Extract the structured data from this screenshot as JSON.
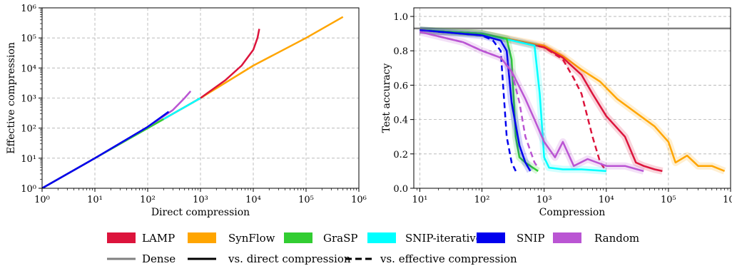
{
  "colors": {
    "LAMP": "#dc143c",
    "SynFlow": "#ffa500",
    "GraSP": "#32cd32",
    "SNIP-iterative": "#00ffff",
    "SNIP": "#0000ee",
    "Random": "#ba55d3",
    "Dense": "#808080"
  },
  "legend": {
    "items": [
      "LAMP",
      "SynFlow",
      "GraSP",
      "SNIP-iterative",
      "SNIP",
      "Random"
    ],
    "dense_label": "Dense",
    "direct_label": "vs. direct compression",
    "effective_label": "vs. effective compression"
  },
  "chart_data": [
    {
      "type": "line",
      "xlabel": "Direct compression",
      "ylabel": "Effective compression",
      "x_scale": "log",
      "y_scale": "log",
      "xlim": [
        1,
        1000000
      ],
      "ylim": [
        1,
        1000000
      ],
      "grid": true,
      "series": [
        {
          "name": "SynFlow",
          "x": [
            1,
            10,
            100,
            1000,
            10000,
            100000,
            500000
          ],
          "y": [
            1,
            10,
            100,
            1000,
            12000,
            100000,
            500000
          ]
        },
        {
          "name": "LAMP",
          "x": [
            1,
            10,
            100,
            1000,
            3000,
            6000,
            10000,
            12000,
            13000
          ],
          "y": [
            1,
            10,
            100,
            1000,
            4000,
            12000,
            40000,
            100000,
            200000
          ]
        },
        {
          "name": "SNIP-iterative",
          "x": [
            1,
            10,
            100,
            1000
          ],
          "y": [
            1,
            10,
            100,
            1000
          ]
        },
        {
          "name": "GraSP",
          "x": [
            1,
            10,
            100,
            200
          ],
          "y": [
            1,
            10,
            100,
            200
          ]
        },
        {
          "name": "Random",
          "x": [
            1,
            10,
            100,
            300,
            500,
            650
          ],
          "y": [
            1,
            10,
            110,
            400,
            1000,
            1700
          ]
        },
        {
          "name": "SNIP",
          "x": [
            1,
            10,
            100,
            250
          ],
          "y": [
            1,
            10,
            110,
            350
          ]
        }
      ]
    },
    {
      "type": "line",
      "xlabel": "Compression",
      "ylabel": "Test accuracy",
      "x_scale": "log",
      "xlim": [
        8,
        1000000
      ],
      "ylim": [
        0,
        1.05
      ],
      "yticks": [
        0.0,
        0.2,
        0.4,
        0.6,
        0.8,
        1.0
      ],
      "grid": true,
      "dense_accuracy": 0.93,
      "series": [
        {
          "name": "SynFlow",
          "style": "solid",
          "x": [
            10,
            100,
            1000,
            2000,
            4000,
            8000,
            15000,
            30000,
            60000,
            100000,
            130000,
            200000,
            300000,
            500000,
            800000
          ],
          "y": [
            0.92,
            0.9,
            0.83,
            0.77,
            0.69,
            0.62,
            0.52,
            0.44,
            0.36,
            0.27,
            0.15,
            0.19,
            0.13,
            0.13,
            0.1
          ]
        },
        {
          "name": "LAMP",
          "style": "solid",
          "x": [
            10,
            100,
            1000,
            2000,
            4000,
            6000,
            10000,
            20000,
            30000,
            40000,
            60000,
            80000
          ],
          "y": [
            0.92,
            0.9,
            0.82,
            0.76,
            0.66,
            0.55,
            0.42,
            0.3,
            0.15,
            0.13,
            0.11,
            0.1
          ]
        },
        {
          "name": "LAMP",
          "style": "dashed",
          "x": [
            10,
            100,
            1000,
            2000,
            3000,
            4000,
            6000,
            8000,
            10000
          ],
          "y": [
            0.92,
            0.9,
            0.82,
            0.75,
            0.64,
            0.55,
            0.3,
            0.15,
            0.1
          ]
        },
        {
          "name": "SNIP-iterative",
          "style": "solid",
          "x": [
            10,
            100,
            700,
            850,
            1000,
            1200,
            2000,
            4000,
            10000
          ],
          "y": [
            0.92,
            0.9,
            0.83,
            0.55,
            0.18,
            0.12,
            0.11,
            0.11,
            0.1
          ]
        },
        {
          "name": "GraSP",
          "style": "solid",
          "x": [
            10,
            100,
            250,
            300,
            350,
            400,
            500,
            600,
            800
          ],
          "y": [
            0.92,
            0.9,
            0.87,
            0.75,
            0.3,
            0.18,
            0.15,
            0.13,
            0.1
          ]
        },
        {
          "name": "SNIP",
          "style": "solid",
          "x": [
            10,
            100,
            200,
            250,
            300,
            400,
            500,
            600
          ],
          "y": [
            0.92,
            0.89,
            0.86,
            0.8,
            0.5,
            0.25,
            0.15,
            0.1
          ]
        },
        {
          "name": "SNIP",
          "style": "dashed",
          "x": [
            10,
            100,
            150,
            200,
            250,
            300,
            350
          ],
          "y": [
            0.92,
            0.89,
            0.86,
            0.8,
            0.3,
            0.15,
            0.1
          ]
        },
        {
          "name": "Random",
          "style": "solid",
          "x": [
            10,
            50,
            100,
            200,
            300,
            500,
            700,
            1000,
            1500,
            2000,
            3000,
            5000,
            10000,
            20000,
            40000
          ],
          "y": [
            0.91,
            0.85,
            0.8,
            0.76,
            0.68,
            0.52,
            0.4,
            0.27,
            0.18,
            0.27,
            0.13,
            0.17,
            0.13,
            0.13,
            0.1
          ]
        },
        {
          "name": "Random",
          "style": "dashed",
          "x": [
            10,
            50,
            100,
            200,
            300,
            400,
            500,
            700,
            800
          ],
          "y": [
            0.91,
            0.85,
            0.8,
            0.76,
            0.68,
            0.5,
            0.3,
            0.15,
            0.12
          ]
        }
      ]
    }
  ]
}
